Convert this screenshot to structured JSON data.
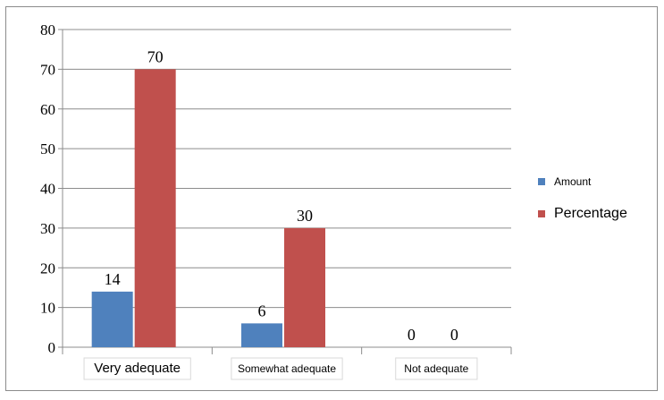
{
  "chart_data": {
    "type": "bar",
    "categories": [
      "Very adequate",
      "Somewhat adequate",
      "Not adequate"
    ],
    "series": [
      {
        "name": "Amount",
        "values": [
          14,
          6,
          0
        ],
        "color": "#4f81bd"
      },
      {
        "name": "Percentage",
        "values": [
          70,
          30,
          0
        ],
        "color": "#c0504d"
      }
    ],
    "ylim": [
      0,
      80
    ],
    "yticks": [
      0,
      10,
      20,
      30,
      40,
      50,
      60,
      70,
      80
    ],
    "grid": true,
    "legend": "right"
  }
}
